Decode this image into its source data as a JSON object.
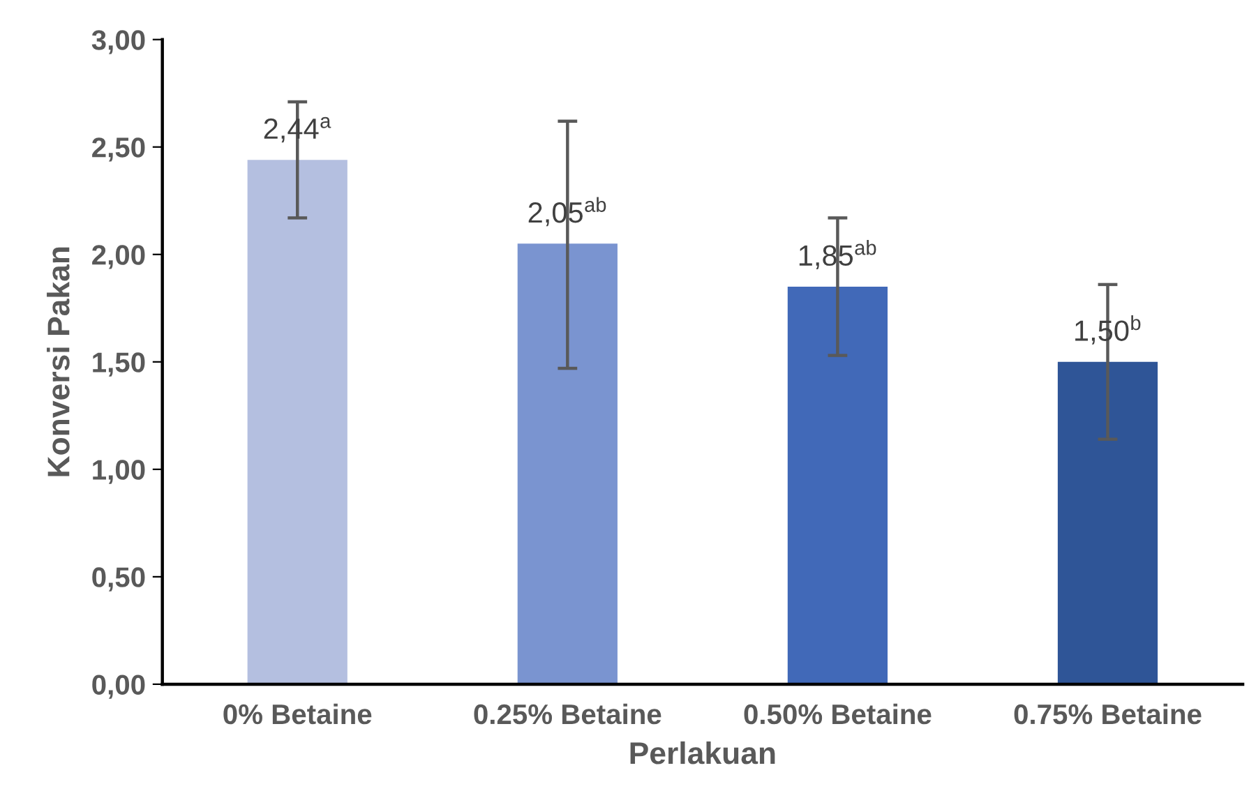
{
  "chart_data": {
    "type": "bar",
    "xlabel": "Perlakuan",
    "ylabel": "Konversi Pakan",
    "categories": [
      "0% Betaine",
      "0.25% Betaine",
      "0.50% Betaine",
      "0.75% Betaine"
    ],
    "values": [
      2.44,
      2.05,
      1.85,
      1.5
    ],
    "colors": [
      "#b4bfe0",
      "#7a94d0",
      "#4169b8",
      "#2f5597"
    ],
    "errors": [
      [
        2.17,
        2.71
      ],
      [
        1.47,
        2.62
      ],
      [
        1.53,
        2.17
      ],
      [
        1.14,
        1.86
      ]
    ],
    "value_labels": [
      "2,44$^{a}$",
      "2,05$^{ab}$",
      "1,85$^{ab}$",
      "1,50$^{b}$"
    ],
    "ylim": [
      0,
      3
    ],
    "yticks": [
      {
        "value": 0,
        "label": "0,00"
      },
      {
        "value": 0.5,
        "label": "0,50"
      },
      {
        "value": 1,
        "label": "1,00"
      },
      {
        "value": 1.5,
        "label": "1,50"
      },
      {
        "value": 2,
        "label": "2,00"
      },
      {
        "value": 2.5,
        "label": "2,50"
      },
      {
        "value": 3,
        "label": "3,00"
      }
    ],
    "grid": false
  }
}
